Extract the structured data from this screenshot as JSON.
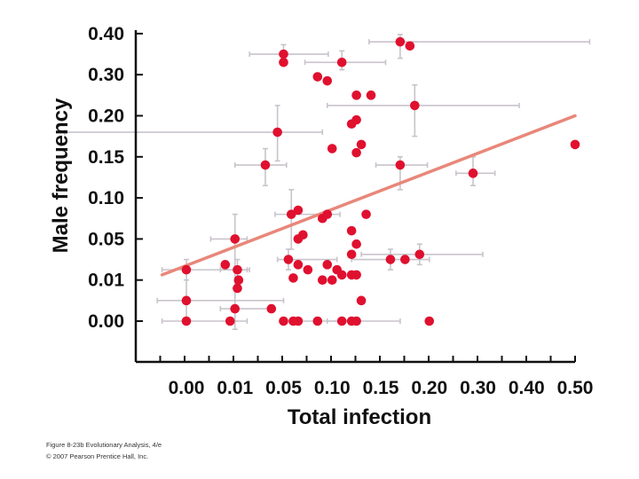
{
  "chart_data": {
    "type": "scatter",
    "xlabel": "Total infection",
    "ylabel": "Male frequency",
    "x_scale": "categorical-ordinal",
    "y_scale": "categorical-ordinal",
    "x_ticks": [
      "0.00",
      "0.01",
      "0.05",
      "0.10",
      "0.15",
      "0.20",
      "0.30",
      "0.40",
      "0.50"
    ],
    "y_ticks": [
      "0.00",
      "0.01",
      "0.05",
      "0.10",
      "0.15",
      "0.20",
      "0.30",
      "0.40"
    ],
    "xlim": [
      "0.00",
      "0.50"
    ],
    "ylim": [
      "0.00",
      "0.40"
    ],
    "grid": false,
    "legend": "none",
    "point_color": "#e0102f",
    "error_bar_color": "#c9c3cb",
    "trend_color": "#e8877a",
    "trend_line": {
      "from_x": -0.005,
      "from_y": 0.015,
      "to_x": 0.5,
      "to_y": 0.2
    },
    "points": [
      {
        "x": 0.05,
        "y": 0.35,
        "xerr": [
          0.028,
          0.046
        ],
        "yerr": [
          0.023,
          0.023
        ]
      },
      {
        "x": 0.05,
        "y": 0.33
      },
      {
        "x": 0.11,
        "y": 0.33,
        "xerr": [
          0.038,
          0.045
        ],
        "yerr": [
          0.018,
          0.028
        ]
      },
      {
        "x": 0.17,
        "y": 0.38,
        "xerr": [
          0.032,
          0.36
        ],
        "yerr": [
          0.04,
          0.018
        ]
      },
      {
        "x": 0.18,
        "y": 0.37
      },
      {
        "x": 0.085,
        "y": 0.295
      },
      {
        "x": 0.095,
        "y": 0.285
      },
      {
        "x": 0.125,
        "y": 0.25
      },
      {
        "x": 0.14,
        "y": 0.25
      },
      {
        "x": 0.185,
        "y": 0.225,
        "xerr": [
          0.09,
          0.2
        ],
        "yerr": [
          0.05,
          0.05
        ]
      },
      {
        "x": 0.12,
        "y": 0.19
      },
      {
        "x": 0.125,
        "y": 0.195
      },
      {
        "x": 0.045,
        "y": 0.18,
        "xerr": [
          0.07,
          0.045
        ],
        "yerr": [
          0.035,
          0.045
        ]
      },
      {
        "x": 0.13,
        "y": 0.165
      },
      {
        "x": 0.1,
        "y": 0.16
      },
      {
        "x": 0.125,
        "y": 0.155
      },
      {
        "x": 0.035,
        "y": 0.14,
        "xerr": [
          0.025,
          0.018
        ],
        "yerr": [
          0.025,
          0.02
        ]
      },
      {
        "x": 0.17,
        "y": 0.14,
        "xerr": [
          0.025,
          0.028
        ],
        "yerr": [
          0.03,
          0.01
        ]
      },
      {
        "x": 0.29,
        "y": 0.13,
        "xerr": [
          0.035,
          0.045
        ],
        "yerr": [
          0.015,
          0.02
        ]
      },
      {
        "x": 0.5,
        "y": 0.165
      },
      {
        "x": 0.058,
        "y": 0.08,
        "xerr": [
          0.015,
          0.05
        ],
        "yerr": [
          0.04,
          0.03
        ]
      },
      {
        "x": 0.065,
        "y": 0.085
      },
      {
        "x": 0.09,
        "y": 0.075
      },
      {
        "x": 0.095,
        "y": 0.08
      },
      {
        "x": 0.135,
        "y": 0.08
      },
      {
        "x": 0.01,
        "y": 0.05,
        "xerr": [
          0.005,
          0.01
        ],
        "yerr": [
          0.05,
          0.03
        ]
      },
      {
        "x": 0.065,
        "y": 0.05
      },
      {
        "x": 0.07,
        "y": 0.055
      },
      {
        "x": 0.12,
        "y": 0.06
      },
      {
        "x": 0.125,
        "y": 0.045
      },
      {
        "x": 0.0,
        "y": 0.02,
        "xerr": [
          0.005,
          0.02
        ],
        "yerr": [
          0.01,
          0.01
        ]
      },
      {
        "x": 0.0,
        "y": 0.005,
        "xerr": [
          0.006,
          0.05
        ],
        "yerr": [
          0.005,
          0.005
        ]
      },
      {
        "x": 0.008,
        "y": 0.025
      },
      {
        "x": 0.012,
        "y": 0.02,
        "xerr": [
          0.005,
          0.01
        ],
        "yerr": [
          0.01,
          0.01
        ]
      },
      {
        "x": 0.013,
        "y": 0.01
      },
      {
        "x": 0.012,
        "y": 0.008
      },
      {
        "x": 0.01,
        "y": 0.003,
        "xerr": [
          0.003,
          0.03
        ],
        "yerr": [
          0.005,
          0.005
        ]
      },
      {
        "x": 0.055,
        "y": 0.03,
        "xerr": [
          0.01,
          0.05
        ],
        "yerr": [
          0.01,
          0.01
        ]
      },
      {
        "x": 0.06,
        "y": 0.012
      },
      {
        "x": 0.065,
        "y": 0.025
      },
      {
        "x": 0.075,
        "y": 0.02
      },
      {
        "x": 0.09,
        "y": 0.01
      },
      {
        "x": 0.095,
        "y": 0.025
      },
      {
        "x": 0.1,
        "y": 0.01
      },
      {
        "x": 0.105,
        "y": 0.02
      },
      {
        "x": 0.11,
        "y": 0.015
      },
      {
        "x": 0.12,
        "y": 0.035
      },
      {
        "x": 0.12,
        "y": 0.015
      },
      {
        "x": 0.125,
        "y": 0.015
      },
      {
        "x": 0.13,
        "y": 0.005
      },
      {
        "x": 0.16,
        "y": 0.03,
        "xerr": [
          0.04,
          0.04
        ],
        "yerr": [
          0.01,
          0.01
        ]
      },
      {
        "x": 0.175,
        "y": 0.03
      },
      {
        "x": 0.19,
        "y": 0.035,
        "xerr": [
          0.06,
          0.12
        ],
        "yerr": [
          0.01,
          0.01
        ]
      },
      {
        "x": 0.0,
        "y": 0.0,
        "xerr": [
          0.005,
          0.02
        ]
      },
      {
        "x": 0.009,
        "y": 0.0
      },
      {
        "x": 0.04,
        "y": 0.003
      },
      {
        "x": 0.05,
        "y": 0.0
      },
      {
        "x": 0.06,
        "y": 0.0
      },
      {
        "x": 0.065,
        "y": 0.0
      },
      {
        "x": 0.085,
        "y": 0.0,
        "xerr": [
          0.02,
          0.04
        ]
      },
      {
        "x": 0.11,
        "y": 0.0
      },
      {
        "x": 0.12,
        "y": 0.0
      },
      {
        "x": 0.125,
        "y": 0.0,
        "xerr": [
          0.03,
          0.045
        ]
      },
      {
        "x": 0.2,
        "y": 0.0
      }
    ]
  },
  "caption": {
    "line1": "Figure 8-23b  Evolutionary Analysis, 4/e",
    "line2": "© 2007 Pearson Prentice Hall, Inc."
  }
}
